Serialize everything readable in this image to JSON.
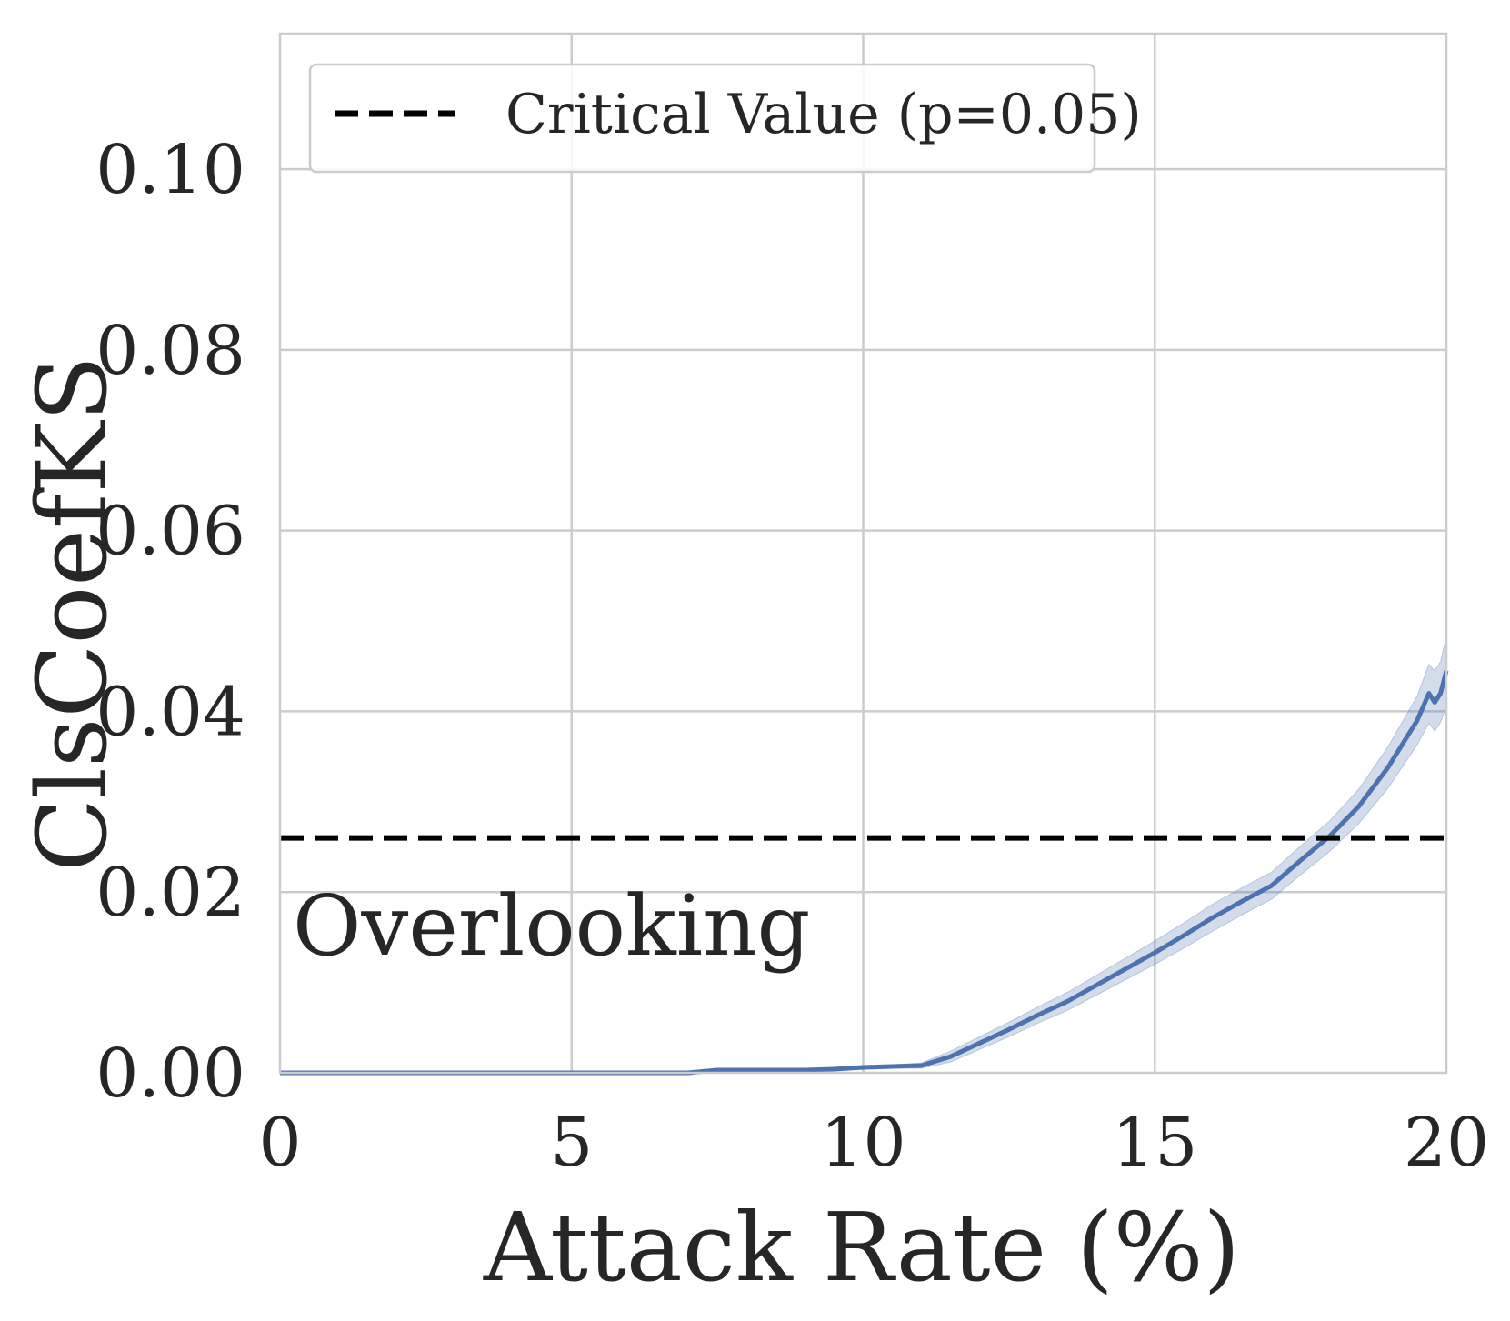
{
  "chart_data": {
    "type": "line",
    "title": "",
    "xlabel": "Attack Rate (%)",
    "ylabel": "ClsCoefKS",
    "xlim": [
      0,
      20
    ],
    "ylim": [
      0,
      0.115
    ],
    "xticks": [
      0,
      5,
      10,
      15,
      20
    ],
    "xtick_labels": [
      "0",
      "5",
      "10",
      "15",
      "20"
    ],
    "yticks": [
      0.0,
      0.02,
      0.04,
      0.06,
      0.08,
      0.1
    ],
    "ytick_labels": [
      "0.00",
      "0.02",
      "0.04",
      "0.06",
      "0.08",
      "0.10"
    ],
    "grid": true,
    "legend_position": "top-left",
    "series": [
      {
        "name": "ClsCoefKS",
        "color": "#4c72b0",
        "x": [
          0,
          5,
          7,
          7.5,
          9,
          9.5,
          10,
          10.5,
          11,
          11.5,
          12,
          12.5,
          13,
          13.5,
          14,
          14.5,
          15,
          15.5,
          16,
          16.5,
          17,
          17.5,
          18,
          18.5,
          19,
          19.5,
          19.7,
          19.8,
          19.9,
          20
        ],
        "y": [
          0,
          0,
          0,
          0.0003,
          0.0003,
          0.0004,
          0.0006,
          0.0007,
          0.0008,
          0.0018,
          0.0033,
          0.0048,
          0.0064,
          0.0079,
          0.0097,
          0.0115,
          0.0133,
          0.0152,
          0.0172,
          0.019,
          0.0207,
          0.0235,
          0.0262,
          0.0295,
          0.0338,
          0.039,
          0.042,
          0.041,
          0.042,
          0.0445
        ],
        "ci_low": [
          0,
          0,
          0,
          0.0002,
          0.0002,
          0.0003,
          0.0004,
          0.0005,
          0.0005,
          0.0012,
          0.0026,
          0.004,
          0.0055,
          0.0069,
          0.0086,
          0.0103,
          0.012,
          0.0138,
          0.0157,
          0.0175,
          0.0192,
          0.0219,
          0.0245,
          0.0276,
          0.0315,
          0.0363,
          0.0387,
          0.0378,
          0.0388,
          0.0405
        ],
        "ci_high": [
          0,
          0,
          0,
          0.0004,
          0.0004,
          0.0005,
          0.0008,
          0.0009,
          0.0011,
          0.0024,
          0.004,
          0.0056,
          0.0073,
          0.0089,
          0.0108,
          0.0127,
          0.0146,
          0.0166,
          0.0187,
          0.0205,
          0.0222,
          0.0251,
          0.0279,
          0.0314,
          0.0361,
          0.0417,
          0.0452,
          0.0445,
          0.0455,
          0.0483
        ]
      }
    ],
    "reference_lines": [
      {
        "name": "Critical Value (p=0.05)",
        "y": 0.026,
        "style": "dashed",
        "color": "#000000"
      }
    ],
    "annotations": [
      {
        "text": "Overlooking"
      }
    ]
  }
}
